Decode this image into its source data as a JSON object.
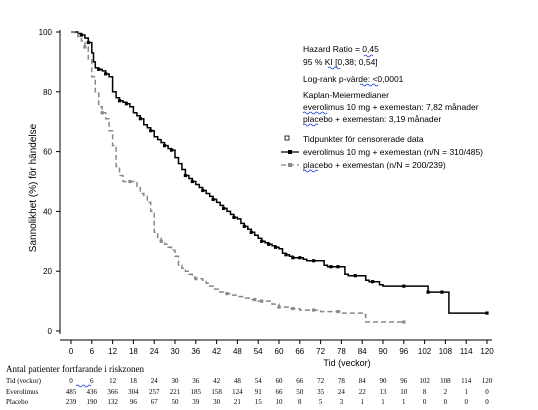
{
  "chart_data": {
    "type": "line",
    "title": "",
    "xlabel": "Tid (veckor)",
    "ylabel": "Sannolikhet (%) för händelse",
    "xlim": [
      0,
      120
    ],
    "ylim": [
      0,
      100
    ],
    "x_ticks": [
      0,
      6,
      12,
      18,
      24,
      30,
      36,
      42,
      48,
      54,
      60,
      66,
      72,
      78,
      84,
      90,
      96,
      102,
      108,
      114,
      120
    ],
    "y_ticks": [
      0,
      20,
      40,
      60,
      80,
      100
    ],
    "grid": false,
    "annotations": {
      "hazard_ratio": "Hazard Ratio = 0,45",
      "ci": "95 % KI [0,38; 0,54]",
      "logrank": "Log-rank p-värde: <0,0001",
      "km_title": "Kaplan-Meiermedianer",
      "km_everolimus": "everolimus 10 mg + exemestan: 7,82 månader",
      "km_placebo": "placebo + exemestan: 3,19 månader"
    },
    "legend": {
      "placement": "right",
      "entries": [
        {
          "label": "Tidpunkter för censorerade data",
          "marker": "square-open"
        },
        {
          "label": "everolimus 10 mg + exemestan (n/N = 310/485)",
          "color": "#000000",
          "style": "solid"
        },
        {
          "label": "placebo + exemestan (n/N = 200/239)",
          "color": "#888888",
          "style": "dashed"
        }
      ]
    },
    "series": [
      {
        "key": "everolimus",
        "color": "#000000",
        "dash": "",
        "points": [
          [
            0,
            100
          ],
          [
            2,
            99.5
          ],
          [
            3,
            99
          ],
          [
            4,
            98
          ],
          [
            5,
            96.5
          ],
          [
            6,
            93
          ],
          [
            6.5,
            90
          ],
          [
            7,
            88
          ],
          [
            8,
            87.5
          ],
          [
            9,
            87
          ],
          [
            10,
            86
          ],
          [
            11,
            85
          ],
          [
            12,
            80
          ],
          [
            13,
            78
          ],
          [
            14,
            77
          ],
          [
            15,
            76.5
          ],
          [
            16,
            76
          ],
          [
            17,
            75
          ],
          [
            18,
            73
          ],
          [
            19,
            72
          ],
          [
            20,
            71
          ],
          [
            21,
            69
          ],
          [
            22,
            68
          ],
          [
            23,
            67
          ],
          [
            24,
            65
          ],
          [
            25,
            64
          ],
          [
            26,
            63
          ],
          [
            27,
            62
          ],
          [
            28,
            61
          ],
          [
            29,
            60.5
          ],
          [
            30,
            58
          ],
          [
            31,
            56
          ],
          [
            32,
            54
          ],
          [
            33,
            52
          ],
          [
            34,
            51
          ],
          [
            35,
            50
          ],
          [
            36,
            49
          ],
          [
            37,
            48
          ],
          [
            38,
            47
          ],
          [
            39,
            46
          ],
          [
            40,
            45
          ],
          [
            41,
            44
          ],
          [
            42,
            43
          ],
          [
            43,
            42
          ],
          [
            44,
            41
          ],
          [
            45,
            40
          ],
          [
            46,
            39
          ],
          [
            47,
            38
          ],
          [
            48,
            37.5
          ],
          [
            49,
            36
          ],
          [
            50,
            35
          ],
          [
            51,
            34
          ],
          [
            52,
            33
          ],
          [
            53,
            32
          ],
          [
            54,
            31
          ],
          [
            55,
            30
          ],
          [
            56,
            29.5
          ],
          [
            57,
            29
          ],
          [
            58,
            28.5
          ],
          [
            59,
            28
          ],
          [
            60,
            27.5
          ],
          [
            61,
            26
          ],
          [
            62,
            25.5
          ],
          [
            63,
            25
          ],
          [
            64,
            24.5
          ],
          [
            66,
            24.5
          ],
          [
            67,
            24
          ],
          [
            68,
            23.5
          ],
          [
            72,
            23.5
          ],
          [
            73,
            22
          ],
          [
            74,
            21.5
          ],
          [
            78,
            21.5
          ],
          [
            79,
            19
          ],
          [
            80,
            18.5
          ],
          [
            84,
            18.5
          ],
          [
            85,
            17
          ],
          [
            86,
            16.5
          ],
          [
            88,
            16.5
          ],
          [
            89,
            15.5
          ],
          [
            90,
            15
          ],
          [
            102,
            15
          ],
          [
            103,
            13
          ],
          [
            108,
            13
          ],
          [
            109,
            6
          ],
          [
            120,
            6
          ]
        ],
        "censor_x": [
          3,
          5,
          8,
          10,
          14,
          16,
          20,
          23,
          27,
          29,
          33,
          35,
          38,
          41,
          44,
          47,
          50,
          52,
          55,
          57,
          59,
          62,
          64,
          66,
          70,
          75,
          77,
          82,
          87,
          96,
          103,
          107,
          120
        ]
      },
      {
        "key": "placebo",
        "color": "#888888",
        "dash": "5,3",
        "points": [
          [
            0,
            100
          ],
          [
            1,
            99.5
          ],
          [
            2,
            98.5
          ],
          [
            3,
            97
          ],
          [
            4,
            95
          ],
          [
            5,
            91
          ],
          [
            6,
            85
          ],
          [
            7,
            80
          ],
          [
            8,
            75
          ],
          [
            9,
            73
          ],
          [
            10,
            71
          ],
          [
            11,
            67
          ],
          [
            12,
            62
          ],
          [
            13,
            55
          ],
          [
            14,
            52
          ],
          [
            15,
            50
          ],
          [
            18,
            50
          ],
          [
            19,
            48
          ],
          [
            20,
            46
          ],
          [
            21,
            45
          ],
          [
            22,
            43
          ],
          [
            23,
            40
          ],
          [
            24,
            33
          ],
          [
            25,
            31
          ],
          [
            26,
            30
          ],
          [
            27,
            29
          ],
          [
            28,
            28
          ],
          [
            29,
            27
          ],
          [
            30,
            25
          ],
          [
            31,
            22
          ],
          [
            32,
            21
          ],
          [
            33,
            20
          ],
          [
            34,
            19
          ],
          [
            35,
            18
          ],
          [
            36,
            17.5
          ],
          [
            38,
            17
          ],
          [
            39,
            16
          ],
          [
            40,
            15
          ],
          [
            41,
            14
          ],
          [
            42,
            14
          ],
          [
            43,
            13
          ],
          [
            44,
            12.5
          ],
          [
            46,
            12
          ],
          [
            48,
            11.5
          ],
          [
            50,
            11
          ],
          [
            52,
            10.5
          ],
          [
            54,
            10
          ],
          [
            57,
            10
          ],
          [
            58,
            9
          ],
          [
            60,
            8
          ],
          [
            63,
            7.5
          ],
          [
            66,
            7
          ],
          [
            72,
            6.5
          ],
          [
            78,
            6
          ],
          [
            84,
            5.5
          ],
          [
            85,
            3
          ],
          [
            96,
            3
          ]
        ],
        "censor_x": [
          4,
          9,
          17,
          26,
          36,
          45,
          53,
          55,
          60,
          64,
          70,
          77,
          96
        ]
      }
    ],
    "risk_table": {
      "title": "Antal patienter fortfarande i riskzonen",
      "rows": [
        {
          "label": "Tid (veckor)",
          "values": [
            "0",
            "6",
            "12",
            "18",
            "24",
            "30",
            "36",
            "42",
            "48",
            "54",
            "60",
            "66",
            "72",
            "78",
            "84",
            "90",
            "96",
            "102",
            "108",
            "114",
            "120"
          ]
        },
        {
          "label": "Everolimus",
          "values": [
            "485",
            "436",
            "366",
            "304",
            "257",
            "221",
            "185",
            "158",
            "124",
            "91",
            "66",
            "50",
            "35",
            "24",
            "22",
            "13",
            "10",
            "8",
            "2",
            "1",
            "0"
          ]
        },
        {
          "label": "Placebo",
          "values": [
            "239",
            "190",
            "132",
            "96",
            "67",
            "50",
            "39",
            "30",
            "21",
            "15",
            "10",
            "8",
            "5",
            "3",
            "1",
            "1",
            "1",
            "0",
            "0",
            "0",
            "0"
          ]
        }
      ]
    }
  }
}
